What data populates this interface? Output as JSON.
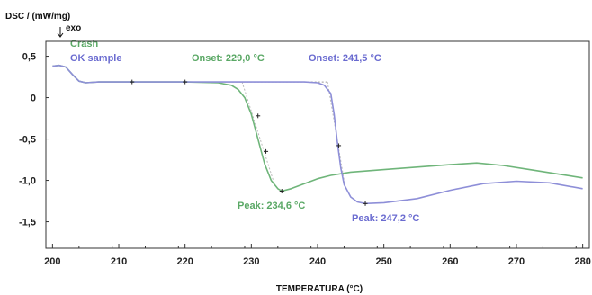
{
  "chart_data": {
    "type": "line",
    "ylabel": "DSC / (mW/mg)",
    "exo_label": "exo",
    "xlabel": "TEMPERATURA (°C)",
    "xlim": [
      199,
      281
    ],
    "ylim": [
      -1.82,
      0.68
    ],
    "x_ticks": [
      200,
      210,
      220,
      230,
      240,
      250,
      260,
      270,
      280
    ],
    "x_tick_labels": [
      "200",
      "210",
      "220",
      "230",
      "240",
      "250",
      "260",
      "270",
      "280"
    ],
    "y_ticks": [
      0.5,
      0,
      -0.5,
      -1.0,
      -1.5
    ],
    "y_tick_labels": [
      "0,5",
      "0",
      "-0,5",
      "-1,0",
      "-1,5"
    ],
    "grid": false,
    "legend_position": "top-left",
    "series": [
      {
        "name": "Crash",
        "color": "#6fb57a",
        "points": [
          [
            200,
            0.38
          ],
          [
            201,
            0.39
          ],
          [
            202,
            0.37
          ],
          [
            203,
            0.28
          ],
          [
            204,
            0.2
          ],
          [
            205,
            0.18
          ],
          [
            207,
            0.19
          ],
          [
            212,
            0.19
          ],
          [
            220,
            0.19
          ],
          [
            225,
            0.18
          ],
          [
            227,
            0.15
          ],
          [
            228,
            0.1
          ],
          [
            229,
            0.0
          ],
          [
            230,
            -0.2
          ],
          [
            231,
            -0.5
          ],
          [
            232,
            -0.8
          ],
          [
            233,
            -1.0
          ],
          [
            234,
            -1.1
          ],
          [
            234.6,
            -1.13
          ],
          [
            236,
            -1.1
          ],
          [
            238,
            -1.04
          ],
          [
            240,
            -0.98
          ],
          [
            242,
            -0.94
          ],
          [
            245,
            -0.9
          ],
          [
            250,
            -0.87
          ],
          [
            255,
            -0.84
          ],
          [
            260,
            -0.81
          ],
          [
            264,
            -0.79
          ],
          [
            268,
            -0.82
          ],
          [
            272,
            -0.87
          ],
          [
            276,
            -0.92
          ],
          [
            280,
            -0.97
          ]
        ]
      },
      {
        "name": "OK sample",
        "color": "#8e8fd8",
        "points": [
          [
            200,
            0.38
          ],
          [
            201,
            0.39
          ],
          [
            202,
            0.37
          ],
          [
            203,
            0.28
          ],
          [
            204,
            0.2
          ],
          [
            205,
            0.18
          ],
          [
            207,
            0.19
          ],
          [
            212,
            0.19
          ],
          [
            220,
            0.19
          ],
          [
            230,
            0.19
          ],
          [
            238,
            0.19
          ],
          [
            240,
            0.18
          ],
          [
            241,
            0.15
          ],
          [
            242,
            0.05
          ],
          [
            242.5,
            -0.2
          ],
          [
            243,
            -0.55
          ],
          [
            243.5,
            -0.85
          ],
          [
            244,
            -1.05
          ],
          [
            245,
            -1.2
          ],
          [
            246,
            -1.26
          ],
          [
            247.2,
            -1.28
          ],
          [
            250,
            -1.27
          ],
          [
            255,
            -1.22
          ],
          [
            260,
            -1.12
          ],
          [
            265,
            -1.04
          ],
          [
            270,
            -1.01
          ],
          [
            275,
            -1.03
          ],
          [
            280,
            -1.1
          ]
        ]
      }
    ],
    "baseline": {
      "color": "#999999",
      "points": [
        [
          220,
          0.19
        ],
        [
          241.5,
          0.19
        ]
      ]
    },
    "markers": [
      {
        "x": 212,
        "y": 0.19
      },
      {
        "x": 220,
        "y": 0.19
      },
      {
        "x": 231,
        "y": -0.22
      },
      {
        "x": 232.2,
        "y": -0.65
      },
      {
        "x": 234.6,
        "y": -1.13
      },
      {
        "x": 243.2,
        "y": -0.58
      },
      {
        "x": 247.2,
        "y": -1.28
      }
    ],
    "annotations": [
      {
        "text": "Onset: 229,0 °C",
        "color": "#5aa865"
      },
      {
        "text": "Onset: 241,5 °C",
        "color": "#6a6bd0"
      },
      {
        "text": "Peak: 234,6 °C",
        "color": "#5aa865"
      },
      {
        "text": "Peak: 247,2 °C",
        "color": "#6a6bd0"
      }
    ]
  }
}
